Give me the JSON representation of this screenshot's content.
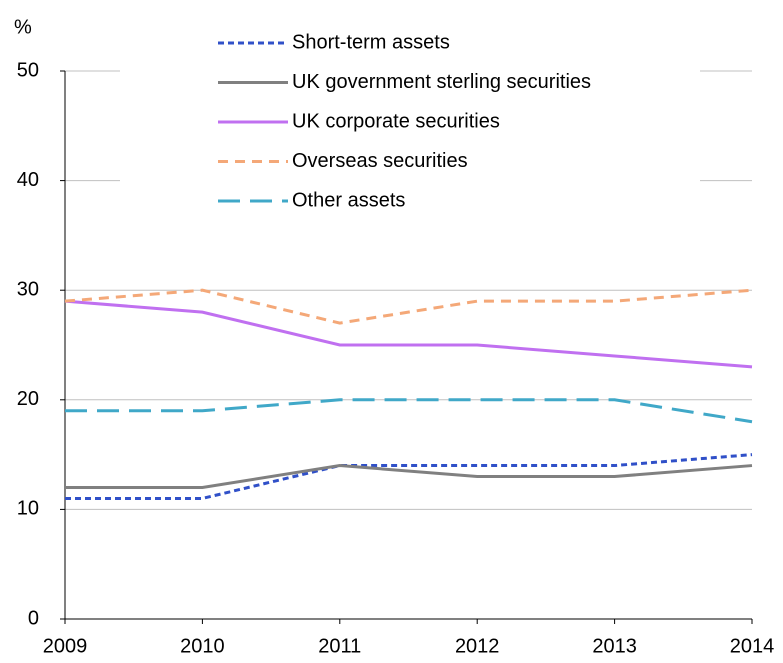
{
  "chart_data": {
    "type": "line",
    "y_label": "%",
    "x": [
      2009,
      2010,
      2011,
      2012,
      2013,
      2014
    ],
    "xlim": [
      2009,
      2014
    ],
    "xticks": [
      2009,
      2010,
      2011,
      2012,
      2013,
      2014
    ],
    "ylim": [
      0,
      50
    ],
    "yticks": [
      0,
      10,
      20,
      30,
      40,
      50
    ],
    "grid": true,
    "legend": "top",
    "series": [
      {
        "name": "Short-term assets",
        "color": "#3050c8",
        "dash": "6 4",
        "values": [
          11,
          11,
          14,
          14,
          14,
          15
        ]
      },
      {
        "name": "UK government sterling securities",
        "color": "#808080",
        "dash": "none",
        "values": [
          12,
          12,
          14,
          13,
          13,
          14
        ]
      },
      {
        "name": "UK corporate securities",
        "color": "#c070f0",
        "dash": "none",
        "values": [
          29,
          28,
          25,
          25,
          24,
          23
        ]
      },
      {
        "name": "Overseas securities",
        "color": "#f4a878",
        "dash": "10 7",
        "values": [
          29,
          30,
          27,
          29,
          29,
          30
        ]
      },
      {
        "name": "Other assets",
        "color": "#40a8c8",
        "dash": "22 10",
        "values": [
          19,
          19,
          20,
          20,
          20,
          18
        ]
      }
    ]
  }
}
